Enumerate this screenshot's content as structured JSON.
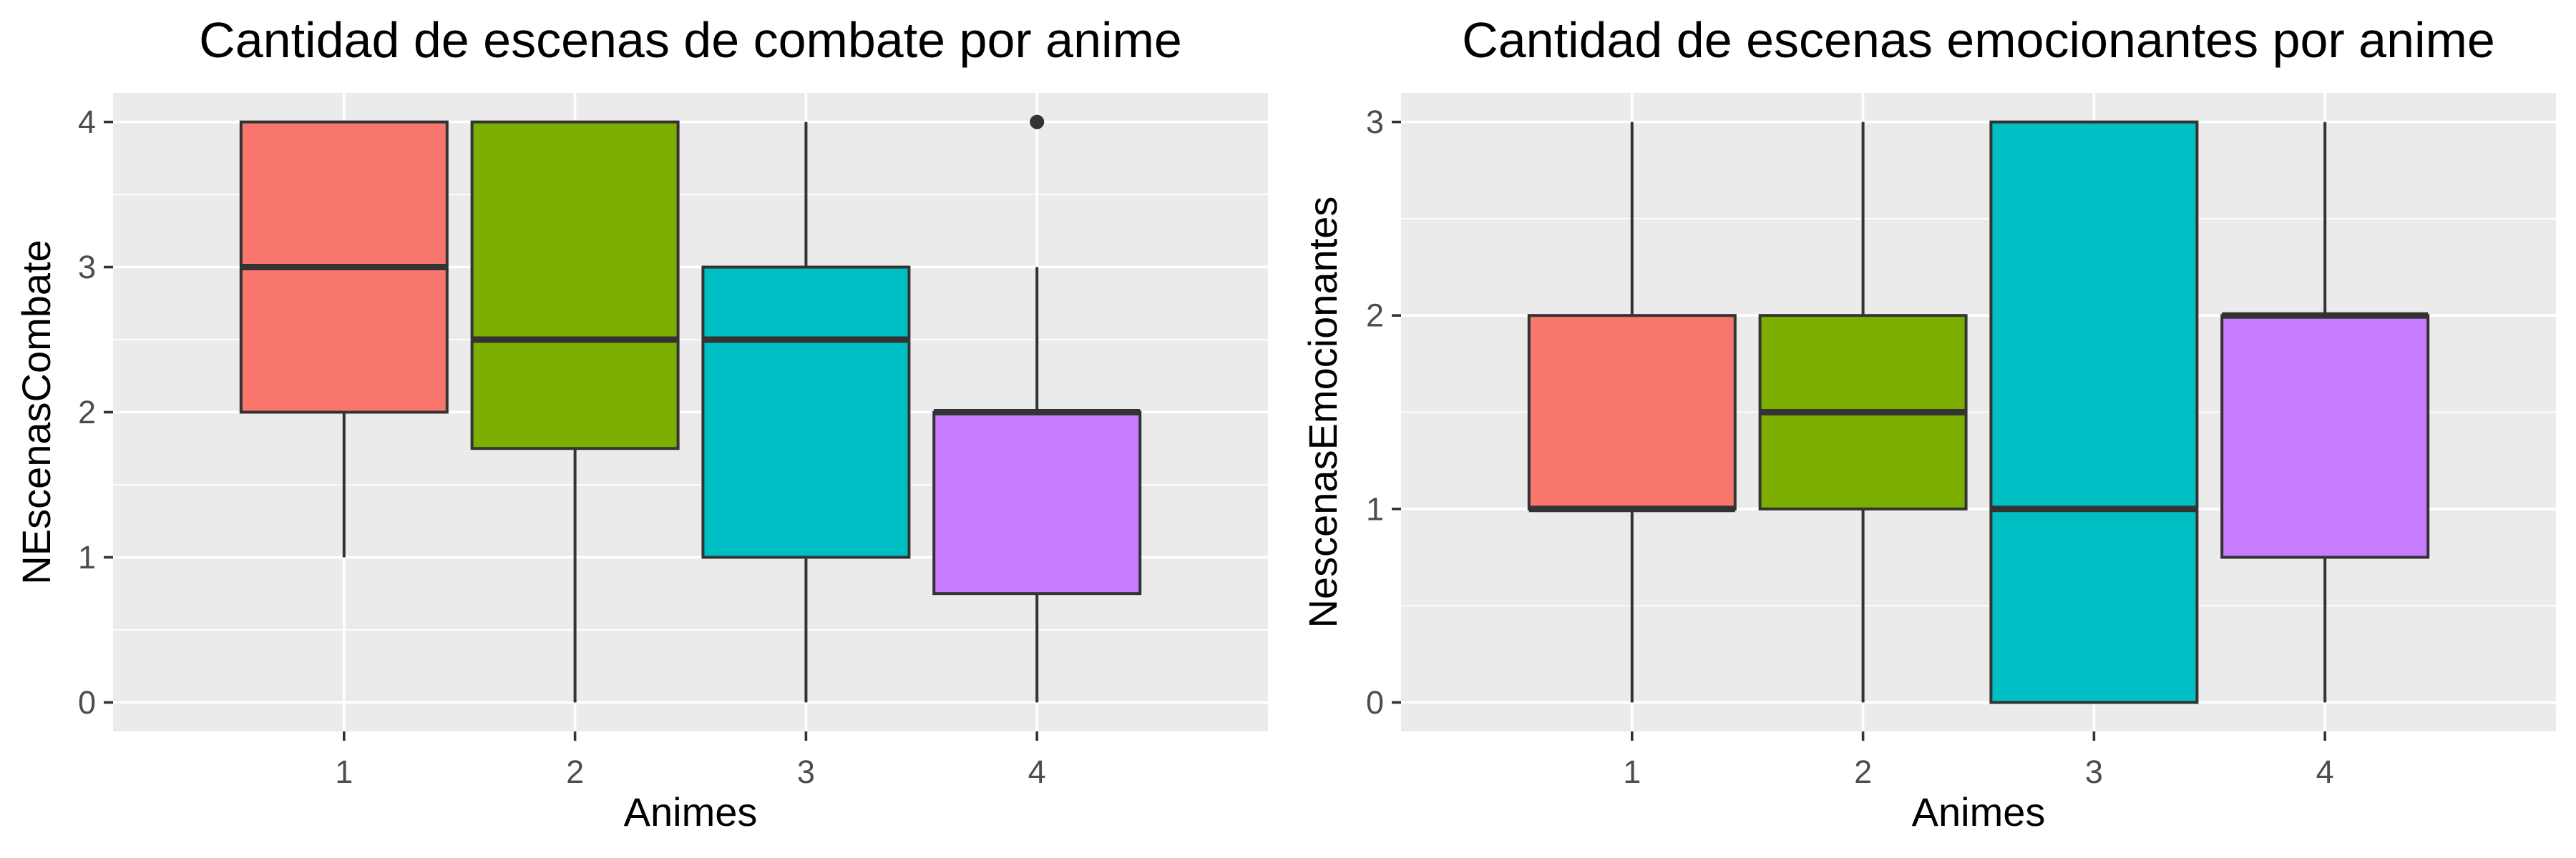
{
  "chart_data": [
    {
      "type": "boxplot",
      "title": "Cantidad de escenas de combate por anime",
      "xlabel": "Animes",
      "ylabel": "NEscenasCombate",
      "categories": [
        "1",
        "2",
        "3",
        "4"
      ],
      "y_ticks": [
        0,
        1,
        2,
        3,
        4
      ],
      "ylim": [
        -0.2,
        4.2
      ],
      "grid": true,
      "boxes": [
        {
          "x": "1",
          "whisker_low": 1,
          "q1": 2,
          "median": 3,
          "q3": 4,
          "whisker_high": 4,
          "outliers": [],
          "color": "#F8766D"
        },
        {
          "x": "2",
          "whisker_low": 0,
          "q1": 1.75,
          "median": 2.5,
          "q3": 4,
          "whisker_high": 4,
          "outliers": [],
          "color": "#7CAE00"
        },
        {
          "x": "3",
          "whisker_low": 0,
          "q1": 1,
          "median": 2.5,
          "q3": 3,
          "whisker_high": 4,
          "outliers": [],
          "color": "#00BFC4"
        },
        {
          "x": "4",
          "whisker_low": 0,
          "q1": 0.75,
          "median": 2,
          "q3": 2,
          "whisker_high": 3,
          "outliers": [
            4
          ],
          "color": "#C77CFF"
        }
      ]
    },
    {
      "type": "boxplot",
      "title": "Cantidad de escenas emocionantes por anime",
      "xlabel": "Animes",
      "ylabel": "NescenasEmocionantes",
      "categories": [
        "1",
        "2",
        "3",
        "4"
      ],
      "y_ticks": [
        0,
        1,
        2,
        3
      ],
      "ylim": [
        -0.15,
        3.15
      ],
      "grid": true,
      "boxes": [
        {
          "x": "1",
          "whisker_low": 0,
          "q1": 1,
          "median": 1,
          "q3": 2,
          "whisker_high": 3,
          "outliers": [],
          "color": "#F8766D"
        },
        {
          "x": "2",
          "whisker_low": 0,
          "q1": 1,
          "median": 1.5,
          "q3": 2,
          "whisker_high": 3,
          "outliers": [],
          "color": "#7CAE00"
        },
        {
          "x": "3",
          "whisker_low": 0,
          "q1": 0,
          "median": 1,
          "q3": 3,
          "whisker_high": 3,
          "outliers": [],
          "color": "#00BFC4"
        },
        {
          "x": "4",
          "whisker_low": 0,
          "q1": 0.75,
          "median": 2,
          "q3": 2,
          "whisker_high": 3,
          "outliers": [],
          "color": "#C77CFF"
        }
      ]
    }
  ]
}
